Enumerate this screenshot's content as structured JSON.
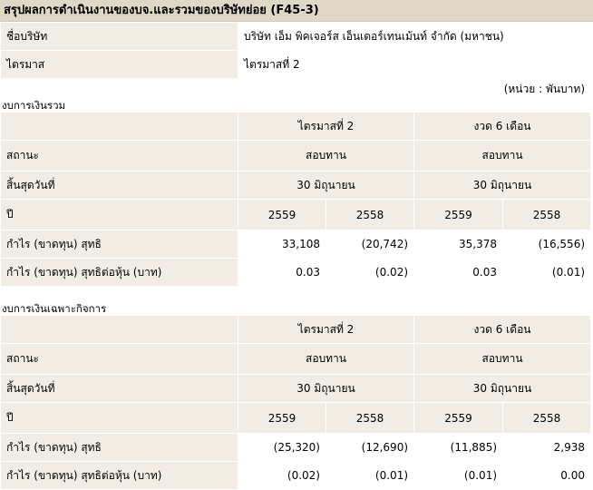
{
  "title": "สรุปผลการดำเนินงานของบจ.และรวมของบริษัทย่อย (F45-3)",
  "company_label": "ชื่อบริษัท",
  "company_name": "บริษัท เอ็ม พิคเจอร์ส เอ็นเตอร์เทนเม้นท์ จำกัด (มหาชน)",
  "quarter_label": "ไตรมาส",
  "quarter_value": "ไตรมาสที่ 2",
  "unit_note": "(หน่วย : พันบาท)",
  "sections": [
    {
      "heading": "งบการเงินรวม",
      "period_q": "ไตรมาสที่ 2",
      "period_h": "งวด 6 เดือน",
      "status_label": "สถานะ",
      "status_q": "สอบทาน",
      "status_h": "สอบทาน",
      "end_label": "สิ้นสุดวันที่",
      "end_q": "30 มิถุนายน",
      "end_h": "30 มิถุนายน",
      "year_label": "ปี",
      "years": [
        "2559",
        "2558",
        "2559",
        "2558"
      ],
      "profit_label": "กำไร (ขาดทุน) สุทธิ",
      "profit": [
        "33,108",
        "(20,742)",
        "35,378",
        "(16,556)"
      ],
      "eps_label": "กำไร (ขาดทุน) สุทธิต่อหุ้น (บาท)",
      "eps": [
        "0.03",
        "(0.02)",
        "0.03",
        "(0.01)"
      ]
    },
    {
      "heading": "งบการเงินเฉพาะกิจการ",
      "period_q": "ไตรมาสที่ 2",
      "period_h": "งวด 6 เดือน",
      "status_label": "สถานะ",
      "status_q": "สอบทาน",
      "status_h": "สอบทาน",
      "end_label": "สิ้นสุดวันที่",
      "end_q": "30 มิถุนายน",
      "end_h": "30 มิถุนายน",
      "year_label": "ปี",
      "years": [
        "2559",
        "2558",
        "2559",
        "2558"
      ],
      "profit_label": "กำไร (ขาดทุน) สุทธิ",
      "profit": [
        "(25,320)",
        "(12,690)",
        "(11,885)",
        "2,938"
      ],
      "eps_label": "กำไร (ขาดทุน) สุทธิต่อหุ้น (บาท)",
      "eps": [
        "(0.02)",
        "(0.01)",
        "(0.01)",
        "0.00"
      ]
    }
  ]
}
